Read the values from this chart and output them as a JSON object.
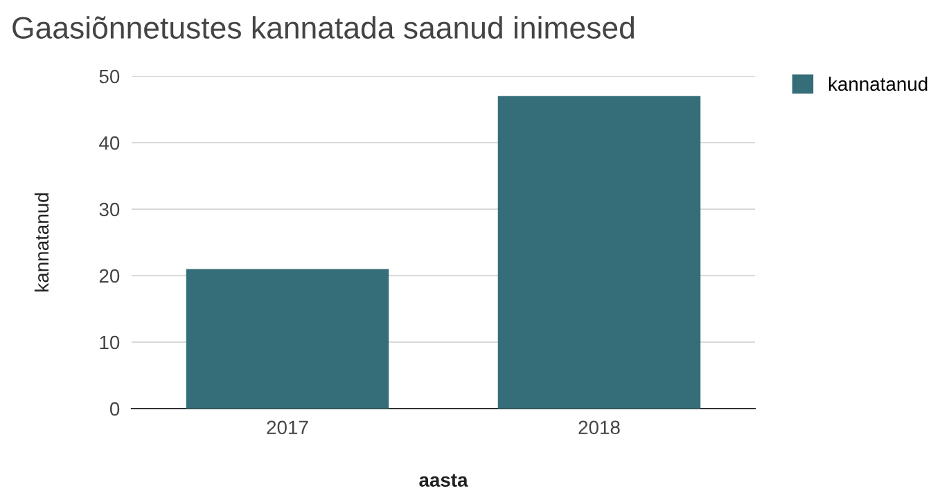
{
  "chart_data": {
    "type": "bar",
    "title": "Gaasiõnnetustes kannatada saanud inimesed",
    "xlabel": "aasta",
    "ylabel": "kannatanud",
    "categories": [
      "2017",
      "2018"
    ],
    "series": [
      {
        "name": "kannatanud",
        "color": "#356e78",
        "values": [
          21,
          47
        ]
      }
    ],
    "ylim": [
      0,
      50
    ],
    "yticks": [
      0,
      10,
      20,
      30,
      40,
      50
    ],
    "grid": "y",
    "legend": "top right"
  }
}
